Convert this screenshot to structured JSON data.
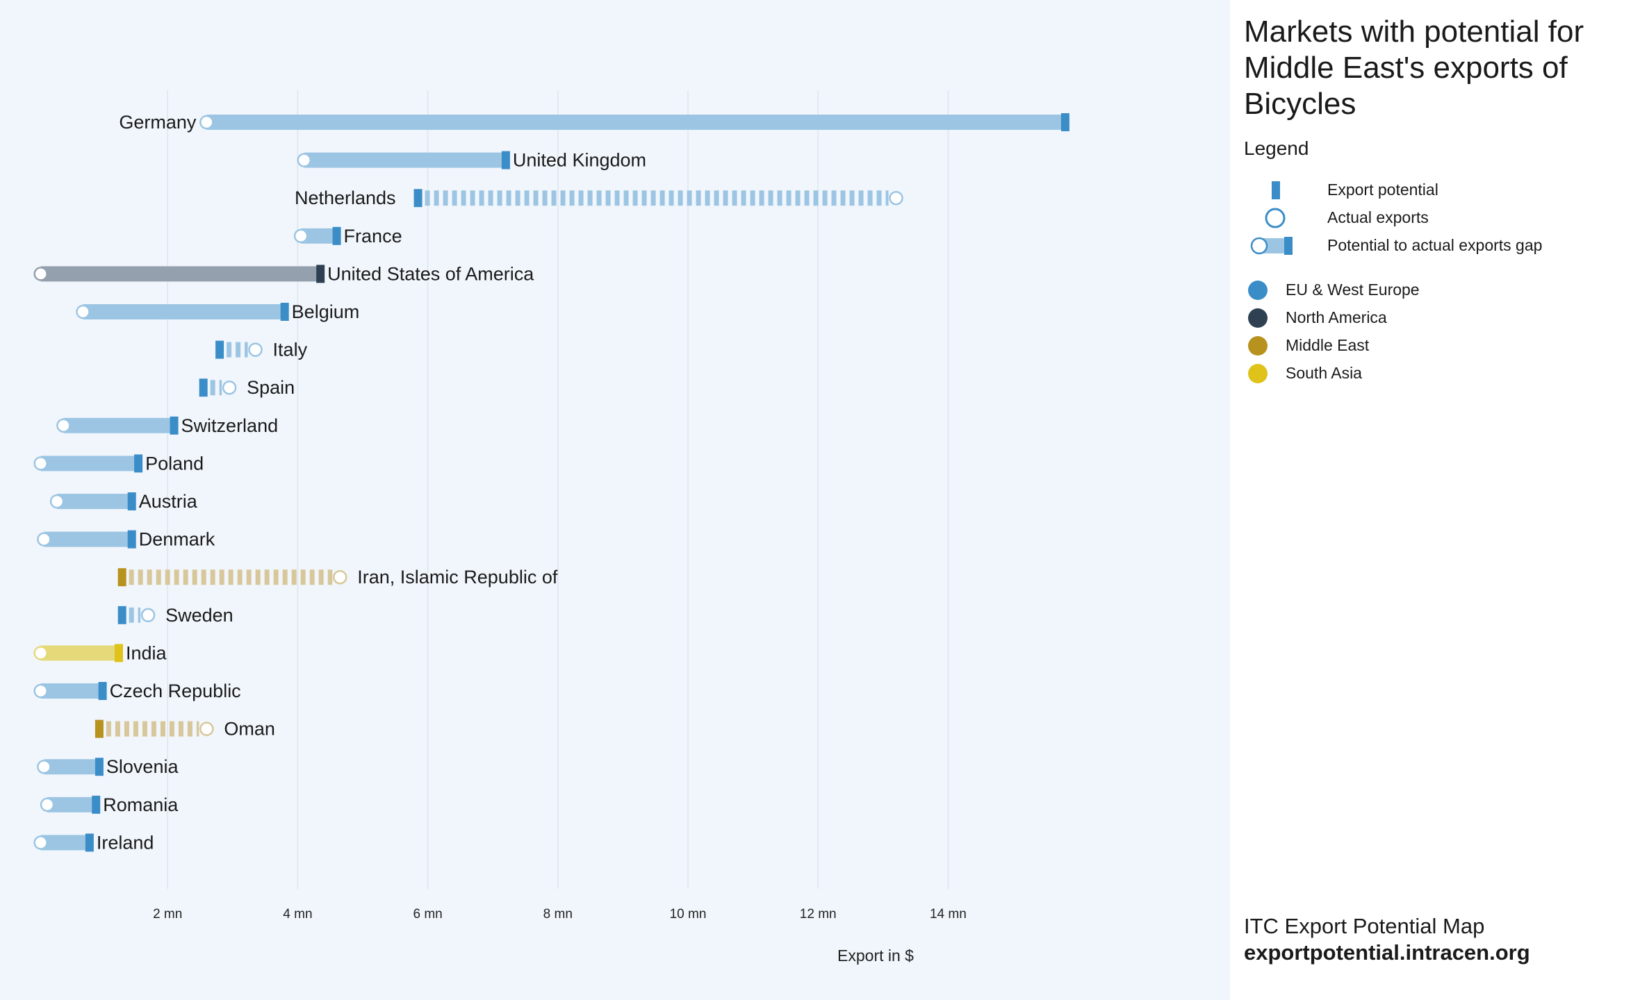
{
  "panel": {
    "title": "Markets with potential for Middle East's exports of Bicycles",
    "legend_heading": "Legend",
    "legend_items": [
      {
        "label": "Export potential",
        "icon": "potential-marker-icon"
      },
      {
        "label": "Actual exports",
        "icon": "actual-circle-icon"
      },
      {
        "label": "Potential to actual exports gap",
        "icon": "gap-bar-icon"
      }
    ],
    "regions": [
      {
        "label": "EU & West Europe",
        "color": "#3b8dc8"
      },
      {
        "label": "North America",
        "color": "#2f4052"
      },
      {
        "label": "Middle East",
        "color": "#b8921e"
      },
      {
        "label": "South Asia",
        "color": "#dfc21a"
      }
    ],
    "footer_line1": "ITC Export Potential Map",
    "footer_line2": "exportpotential.intracen.org"
  },
  "chart_data": {
    "type": "bar",
    "subtype": "dumbbell",
    "xlabel": "Export in $",
    "xlim": [
      0,
      16.5
    ],
    "x_unit": "mn",
    "grid": true,
    "x_ticks": [
      {
        "value": 2,
        "label": "2 mn"
      },
      {
        "value": 4,
        "label": "4 mn"
      },
      {
        "value": 6,
        "label": "6 mn"
      },
      {
        "value": 8,
        "label": "8 mn"
      },
      {
        "value": 10,
        "label": "10 mn"
      },
      {
        "value": 12,
        "label": "12 mn"
      },
      {
        "value": 14,
        "label": "14 mn"
      }
    ],
    "markets": [
      {
        "name": "Germany",
        "region": "EU & West Europe",
        "actual": 2.6,
        "potential": 15.8
      },
      {
        "name": "United Kingdom",
        "region": "EU & West Europe",
        "actual": 4.1,
        "potential": 7.2
      },
      {
        "name": "Netherlands",
        "region": "EU & West Europe",
        "actual": 13.2,
        "potential": 5.85
      },
      {
        "name": "France",
        "region": "EU & West Europe",
        "actual": 4.05,
        "potential": 4.6
      },
      {
        "name": "United States of America",
        "region": "North America",
        "actual": 0.05,
        "potential": 4.35
      },
      {
        "name": "Belgium",
        "region": "EU & West Europe",
        "actual": 0.7,
        "potential": 3.8
      },
      {
        "name": "Italy",
        "region": "EU & West Europe",
        "actual": 3.35,
        "potential": 2.8
      },
      {
        "name": "Spain",
        "region": "EU & West Europe",
        "actual": 2.95,
        "potential": 2.55
      },
      {
        "name": "Switzerland",
        "region": "EU & West Europe",
        "actual": 0.4,
        "potential": 2.1
      },
      {
        "name": "Poland",
        "region": "EU & West Europe",
        "actual": 0.05,
        "potential": 1.55
      },
      {
        "name": "Austria",
        "region": "EU & West Europe",
        "actual": 0.3,
        "potential": 1.45
      },
      {
        "name": "Denmark",
        "region": "EU & West Europe",
        "actual": 0.1,
        "potential": 1.45
      },
      {
        "name": "Iran, Islamic Republic of",
        "region": "Middle East",
        "actual": 4.65,
        "potential": 1.3
      },
      {
        "name": "Sweden",
        "region": "EU & West Europe",
        "actual": 1.7,
        "potential": 1.3
      },
      {
        "name": "India",
        "region": "South Asia",
        "actual": 0.05,
        "potential": 1.25
      },
      {
        "name": "Czech Republic",
        "region": "EU & West Europe",
        "actual": 0.05,
        "potential": 1.0
      },
      {
        "name": "Oman",
        "region": "Middle East",
        "actual": 2.6,
        "potential": 0.95
      },
      {
        "name": "Slovenia",
        "region": "EU & West Europe",
        "actual": 0.1,
        "potential": 0.95
      },
      {
        "name": "Romania",
        "region": "EU & West Europe",
        "actual": 0.15,
        "potential": 0.9
      },
      {
        "name": "Ireland",
        "region": "EU & West Europe",
        "actual": 0.05,
        "potential": 0.8
      }
    ]
  }
}
